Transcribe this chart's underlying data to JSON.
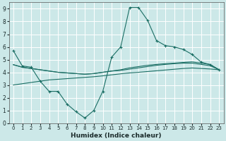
{
  "xlabel": "Humidex (Indice chaleur)",
  "bg_color": "#cce8e8",
  "grid_color": "#ffffff",
  "line_color": "#1a6e64",
  "xlim": [
    -0.5,
    23.5
  ],
  "ylim": [
    0,
    9.5
  ],
  "xticks": [
    0,
    1,
    2,
    3,
    4,
    5,
    6,
    7,
    8,
    9,
    10,
    11,
    12,
    13,
    14,
    15,
    16,
    17,
    18,
    19,
    20,
    21,
    22,
    23
  ],
  "yticks": [
    0,
    1,
    2,
    3,
    4,
    5,
    6,
    7,
    8,
    9
  ],
  "series0": [
    5.7,
    4.5,
    4.4,
    3.3,
    2.5,
    2.5,
    1.5,
    0.9,
    0.4,
    1.0,
    2.5,
    5.2,
    6.0,
    9.1,
    9.1,
    8.1,
    6.5,
    6.1,
    6.0,
    5.8,
    5.4,
    4.8,
    4.6,
    4.2
  ],
  "series1": [
    4.6,
    4.4,
    4.3,
    4.2,
    4.1,
    4.0,
    3.95,
    3.9,
    3.85,
    3.9,
    4.0,
    4.1,
    4.2,
    4.35,
    4.45,
    4.55,
    4.62,
    4.68,
    4.72,
    4.78,
    4.82,
    4.72,
    4.62,
    4.2
  ],
  "series2": [
    4.6,
    4.4,
    4.3,
    4.2,
    4.1,
    4.0,
    3.95,
    3.9,
    3.85,
    3.9,
    4.0,
    4.1,
    4.15,
    4.25,
    4.35,
    4.45,
    4.55,
    4.62,
    4.68,
    4.72,
    4.72,
    4.62,
    4.52,
    4.2
  ],
  "series3": [
    3.0,
    3.1,
    3.2,
    3.3,
    3.4,
    3.45,
    3.5,
    3.55,
    3.6,
    3.65,
    3.72,
    3.8,
    3.88,
    3.95,
    4.0,
    4.06,
    4.12,
    4.18,
    4.24,
    4.3,
    4.34,
    4.3,
    4.26,
    4.2
  ]
}
